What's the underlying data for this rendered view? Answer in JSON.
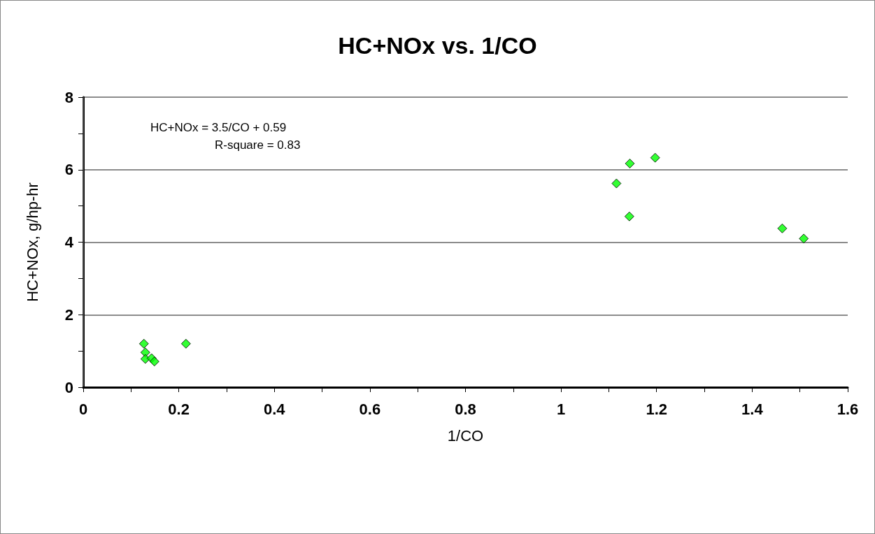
{
  "chart_data": {
    "type": "scatter",
    "title": "HC+NOx vs. 1/CO",
    "xlabel": "1/CO",
    "ylabel": "HC+NOx, g/hp-hr",
    "annotations": [
      "HC+NOx = 3.5/CO + 0.59",
      "R-square = 0.83"
    ],
    "x": [
      0.127,
      0.13,
      0.13,
      0.143,
      0.149,
      0.215,
      1.116,
      1.144,
      1.197,
      1.143,
      1.463,
      1.508
    ],
    "series": [
      {
        "color": "#00ff00",
        "values": [
          1.2,
          0.96,
          0.78,
          0.8,
          0.71,
          1.2,
          5.62,
          6.17,
          6.33,
          4.71,
          4.38,
          4.1
        ]
      }
    ],
    "xlim": [
      0,
      1.6
    ],
    "xticks": [
      0,
      {
        "value": 0.1,
        "label": null
      },
      0.2,
      {
        "value": 0.3,
        "label": null
      },
      0.4,
      {
        "value": 0.5,
        "label": null
      },
      0.6,
      {
        "value": 0.7,
        "label": null
      },
      0.8,
      {
        "value": 0.9,
        "label": null
      },
      1,
      {
        "value": 1.1,
        "label": null
      },
      1.2,
      {
        "value": 1.3,
        "label": null
      },
      1.4,
      {
        "value": 1.5,
        "label": null
      },
      1.6
    ],
    "ylim": [
      0,
      8
    ],
    "yticks": [
      0,
      {
        "value": 1,
        "label": null
      },
      2,
      {
        "value": 3,
        "label": null
      },
      4,
      {
        "value": 5,
        "label": null
      },
      6,
      {
        "value": 7,
        "label": null
      },
      8
    ],
    "grid": "y",
    "marker": "diamond"
  }
}
